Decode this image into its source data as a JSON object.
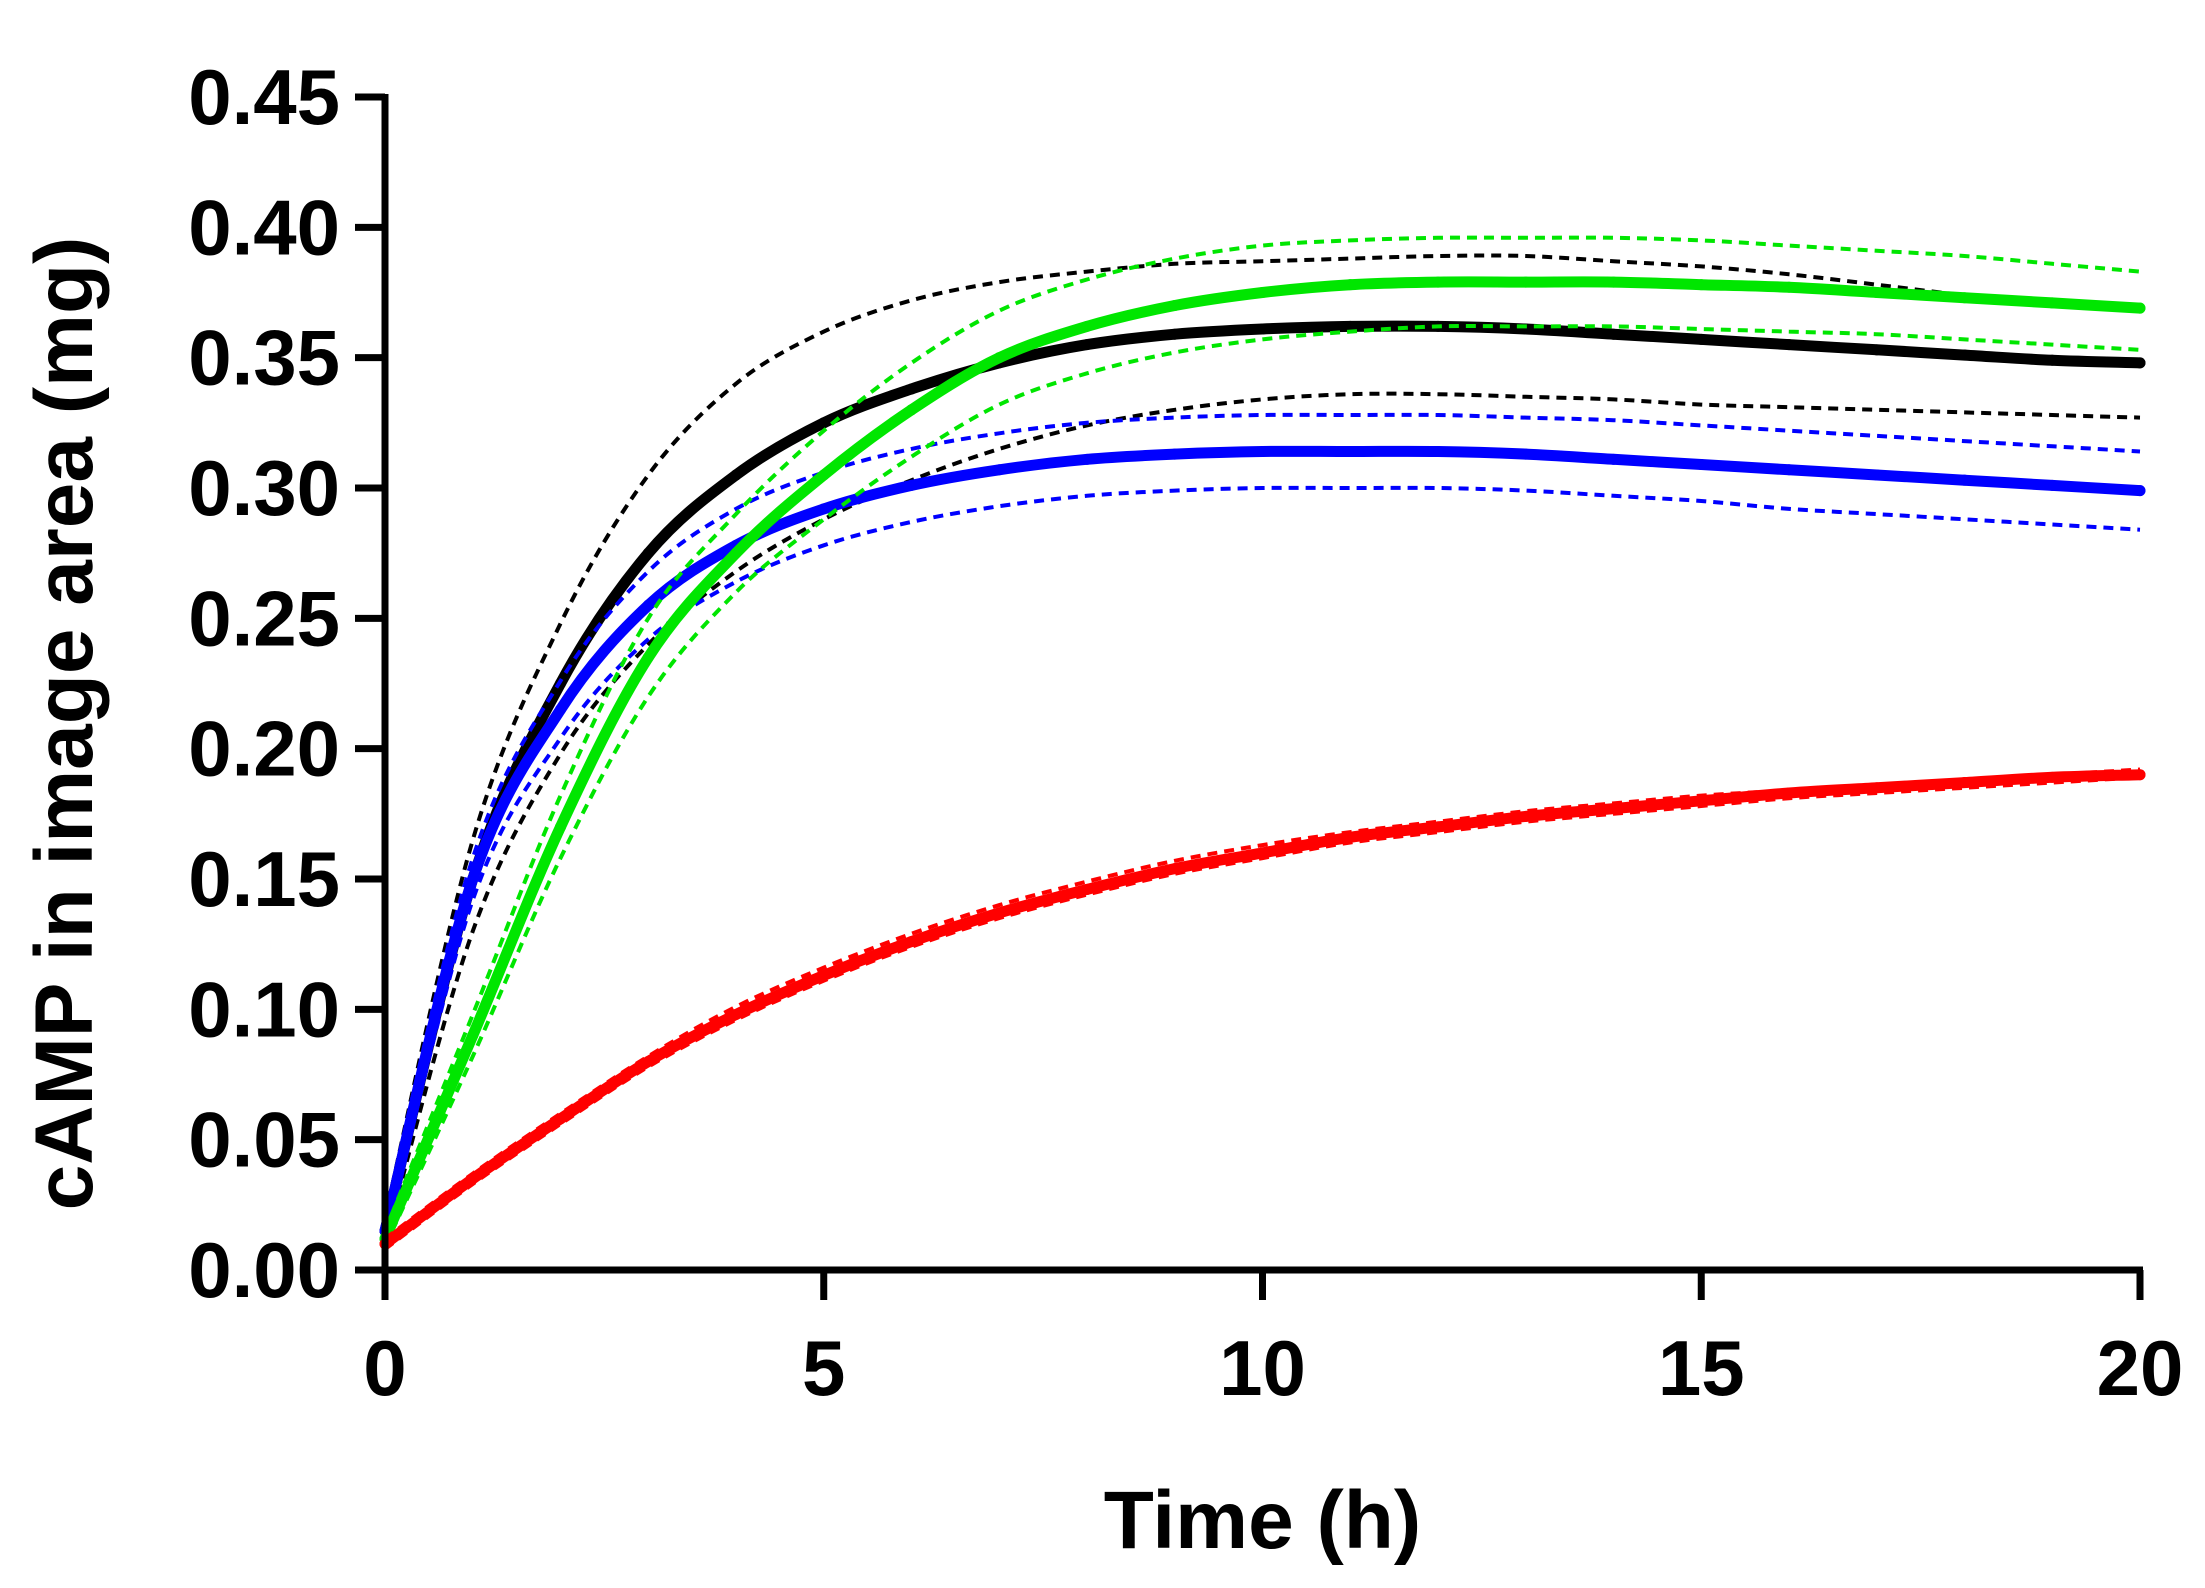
{
  "chart_data": {
    "type": "line",
    "title": "",
    "xlabel": "Time (h)",
    "ylabel": "cAMP in image area (mg)",
    "xlim": [
      0,
      20
    ],
    "ylim": [
      0,
      0.45
    ],
    "xticks": [
      "0",
      "5",
      "10",
      "15",
      "20"
    ],
    "yticks": [
      "0.00",
      "0.05",
      "0.10",
      "0.15",
      "0.20",
      "0.25",
      "0.30",
      "0.35",
      "0.40",
      "0.45"
    ],
    "grid": false,
    "legend": "none",
    "series": [
      {
        "name": "black",
        "color": "#000000",
        "x": [
          0,
          1,
          2,
          3,
          4,
          5,
          6,
          7,
          8,
          9,
          10,
          11,
          12,
          13,
          14,
          15,
          16,
          17,
          18,
          19,
          20
        ],
        "values": [
          0.015,
          0.15,
          0.225,
          0.275,
          0.305,
          0.325,
          0.338,
          0.348,
          0.355,
          0.359,
          0.361,
          0.362,
          0.362,
          0.361,
          0.359,
          0.357,
          0.355,
          0.353,
          0.351,
          0.349,
          0.348
        ],
        "upper": [
          0.02,
          0.165,
          0.248,
          0.305,
          0.34,
          0.36,
          0.372,
          0.379,
          0.383,
          0.386,
          0.387,
          0.388,
          0.389,
          0.389,
          0.387,
          0.385,
          0.382,
          0.378,
          0.374,
          0.371,
          0.369
        ],
        "lower": [
          0.01,
          0.13,
          0.198,
          0.24,
          0.268,
          0.288,
          0.303,
          0.315,
          0.324,
          0.33,
          0.334,
          0.336,
          0.336,
          0.335,
          0.334,
          0.332,
          0.331,
          0.33,
          0.329,
          0.328,
          0.327
        ]
      },
      {
        "name": "blue",
        "color": "#0000ff",
        "x": [
          0,
          1,
          2,
          3,
          4,
          5,
          6,
          7,
          8,
          9,
          10,
          11,
          12,
          13,
          14,
          15,
          16,
          17,
          18,
          19,
          20
        ],
        "values": [
          0.015,
          0.15,
          0.215,
          0.255,
          0.278,
          0.292,
          0.301,
          0.307,
          0.311,
          0.313,
          0.314,
          0.314,
          0.314,
          0.313,
          0.311,
          0.309,
          0.307,
          0.305,
          0.303,
          0.301,
          0.299
        ],
        "upper": [
          0.02,
          0.158,
          0.226,
          0.268,
          0.292,
          0.306,
          0.315,
          0.321,
          0.325,
          0.327,
          0.328,
          0.328,
          0.328,
          0.327,
          0.326,
          0.324,
          0.322,
          0.32,
          0.318,
          0.316,
          0.314
        ],
        "lower": [
          0.01,
          0.142,
          0.204,
          0.242,
          0.264,
          0.278,
          0.287,
          0.293,
          0.297,
          0.299,
          0.3,
          0.3,
          0.3,
          0.299,
          0.297,
          0.295,
          0.292,
          0.29,
          0.288,
          0.286,
          0.284
        ]
      },
      {
        "name": "green",
        "color": "#00e600",
        "x": [
          0,
          1,
          2,
          3,
          4,
          5,
          6,
          7,
          8,
          9,
          10,
          11,
          12,
          13,
          14,
          15,
          16,
          17,
          18,
          19,
          20
        ],
        "values": [
          0.012,
          0.09,
          0.17,
          0.235,
          0.275,
          0.305,
          0.33,
          0.35,
          0.362,
          0.37,
          0.375,
          0.378,
          0.379,
          0.379,
          0.379,
          0.378,
          0.377,
          0.375,
          0.373,
          0.371,
          0.369
        ],
        "upper": [
          0.015,
          0.098,
          0.182,
          0.25,
          0.29,
          0.322,
          0.348,
          0.368,
          0.38,
          0.388,
          0.393,
          0.395,
          0.396,
          0.396,
          0.396,
          0.395,
          0.393,
          0.391,
          0.389,
          0.386,
          0.383
        ],
        "lower": [
          0.009,
          0.082,
          0.158,
          0.22,
          0.26,
          0.288,
          0.312,
          0.332,
          0.344,
          0.352,
          0.357,
          0.36,
          0.362,
          0.362,
          0.362,
          0.361,
          0.36,
          0.359,
          0.357,
          0.355,
          0.353
        ]
      },
      {
        "name": "red",
        "color": "#ff0000",
        "x": [
          0,
          1,
          2,
          3,
          4,
          5,
          6,
          7,
          8,
          9,
          10,
          11,
          12,
          13,
          14,
          15,
          16,
          17,
          18,
          19,
          20
        ],
        "values": [
          0.01,
          0.035,
          0.058,
          0.08,
          0.098,
          0.113,
          0.126,
          0.137,
          0.146,
          0.154,
          0.16,
          0.166,
          0.17,
          0.174,
          0.177,
          0.18,
          0.183,
          0.185,
          0.187,
          0.189,
          0.19
        ],
        "upper": [
          0.012,
          0.037,
          0.06,
          0.082,
          0.101,
          0.116,
          0.129,
          0.14,
          0.149,
          0.157,
          0.163,
          0.168,
          0.172,
          0.176,
          0.179,
          0.182,
          0.184,
          0.186,
          0.188,
          0.19,
          0.192
        ],
        "lower": [
          0.008,
          0.033,
          0.056,
          0.078,
          0.096,
          0.111,
          0.124,
          0.135,
          0.144,
          0.152,
          0.158,
          0.164,
          0.168,
          0.172,
          0.175,
          0.178,
          0.181,
          0.183,
          0.185,
          0.187,
          0.189
        ]
      }
    ]
  }
}
